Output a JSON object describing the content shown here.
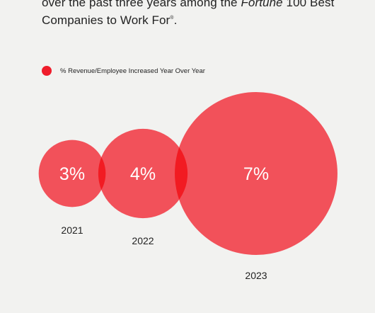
{
  "intro": {
    "line1": "over the past three years among the ",
    "fortune": "Fortune",
    "line1_end": " 100 Best",
    "line2": "Companies to Work For",
    "mark": "®",
    "period": "."
  },
  "colors": {
    "bubble": "#ff4651",
    "legend_dot": "#ef1d2b",
    "bubble_label": "#ffffff",
    "year_label": "#222222"
  },
  "chart_data": {
    "type": "bubble",
    "legend": {
      "entries": [
        "% Revenue/Employee Increased Year Over Year"
      ],
      "placement": "top-left"
    },
    "categories": [
      "2021",
      "2022",
      "2023"
    ],
    "series": [
      {
        "name": "% Revenue/Employee Increased Year Over Year",
        "values": [
          3,
          4,
          7
        ],
        "labels": [
          "3%",
          "4%",
          "7%"
        ]
      }
    ],
    "xlabel": "",
    "ylabel": "",
    "grid": false
  }
}
